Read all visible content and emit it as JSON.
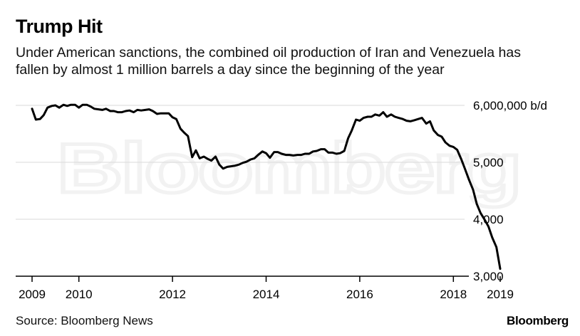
{
  "title": "Trump Hit",
  "subtitle": "Under American sanctions, the combined oil production of Iran and Venezuela has fallen by almost 1 million barrels a day since the beginning of the year",
  "source": "Source: Bloomberg News",
  "brand": "Bloomberg",
  "watermark": "Bloomberg",
  "colors": {
    "line": "#000000",
    "grid": "#d9d9d9",
    "axis": "#000000"
  },
  "chart_data": {
    "type": "line",
    "title": "Trump Hit",
    "xlabel": "",
    "ylabel": "",
    "xlim": [
      2009.0,
      2019.07
    ],
    "ylim": [
      3000000,
      6000000
    ],
    "y_ticks": [
      {
        "value": 6000000,
        "label": "6,000,000 b/d"
      },
      {
        "value": 5000000,
        "label": "5,000"
      },
      {
        "value": 4000000,
        "label": "4,000"
      },
      {
        "value": 3000000,
        "label": "3,000"
      }
    ],
    "x_ticks": [
      {
        "value": 2009.0,
        "label": "2009"
      },
      {
        "value": 2010.0,
        "label": "2010"
      },
      {
        "value": 2012.0,
        "label": "2012"
      },
      {
        "value": 2014.0,
        "label": "2014"
      },
      {
        "value": 2016.0,
        "label": "2016"
      },
      {
        "value": 2018.0,
        "label": "2018"
      },
      {
        "value": 2019.0,
        "label": "2019"
      }
    ],
    "series": [
      {
        "name": "Combined oil production of Iran and Venezuela (b/d)",
        "x": [
          2009.0,
          2009.08,
          2009.17,
          2009.25,
          2009.33,
          2009.42,
          2009.5,
          2009.58,
          2009.67,
          2009.75,
          2009.83,
          2009.92,
          2010.0,
          2010.08,
          2010.17,
          2010.25,
          2010.33,
          2010.42,
          2010.5,
          2010.58,
          2010.67,
          2010.75,
          2010.83,
          2010.92,
          2011.0,
          2011.08,
          2011.17,
          2011.25,
          2011.33,
          2011.42,
          2011.5,
          2011.58,
          2011.67,
          2011.75,
          2011.83,
          2011.92,
          2012.0,
          2012.08,
          2012.17,
          2012.25,
          2012.33,
          2012.42,
          2012.5,
          2012.58,
          2012.67,
          2012.75,
          2012.83,
          2012.92,
          2013.0,
          2013.08,
          2013.17,
          2013.25,
          2013.33,
          2013.42,
          2013.5,
          2013.58,
          2013.67,
          2013.75,
          2013.83,
          2013.92,
          2014.0,
          2014.08,
          2014.17,
          2014.25,
          2014.33,
          2014.42,
          2014.5,
          2014.58,
          2014.67,
          2014.75,
          2014.83,
          2014.92,
          2015.0,
          2015.08,
          2015.17,
          2015.25,
          2015.33,
          2015.42,
          2015.5,
          2015.58,
          2015.67,
          2015.75,
          2015.83,
          2015.92,
          2016.0,
          2016.08,
          2016.17,
          2016.25,
          2016.33,
          2016.42,
          2016.5,
          2016.58,
          2016.67,
          2016.75,
          2016.83,
          2016.92,
          2017.0,
          2017.08,
          2017.17,
          2017.25,
          2017.33,
          2017.42,
          2017.5,
          2017.58,
          2017.67,
          2017.75,
          2017.83,
          2017.92,
          2018.0,
          2018.08,
          2018.17,
          2018.25,
          2018.33,
          2018.42,
          2018.5,
          2018.58,
          2018.67,
          2018.75,
          2018.83,
          2018.92,
          2019.0
        ],
        "values": [
          5940000,
          5750000,
          5760000,
          5830000,
          5960000,
          5990000,
          6000000,
          5960000,
          6010000,
          5990000,
          6010000,
          6010000,
          5960000,
          6010000,
          6010000,
          5980000,
          5940000,
          5930000,
          5920000,
          5940000,
          5900000,
          5900000,
          5880000,
          5880000,
          5900000,
          5910000,
          5880000,
          5920000,
          5910000,
          5920000,
          5930000,
          5900000,
          5850000,
          5860000,
          5860000,
          5860000,
          5790000,
          5760000,
          5590000,
          5520000,
          5460000,
          5090000,
          5210000,
          5070000,
          5100000,
          5060000,
          5030000,
          5100000,
          4960000,
          4890000,
          4920000,
          4930000,
          4940000,
          4960000,
          4990000,
          5010000,
          5050000,
          5070000,
          5130000,
          5190000,
          5160000,
          5080000,
          5180000,
          5180000,
          5150000,
          5130000,
          5130000,
          5120000,
          5130000,
          5130000,
          5150000,
          5150000,
          5190000,
          5200000,
          5230000,
          5230000,
          5170000,
          5170000,
          5150000,
          5160000,
          5200000,
          5420000,
          5560000,
          5750000,
          5730000,
          5780000,
          5800000,
          5800000,
          5840000,
          5820000,
          5880000,
          5800000,
          5840000,
          5800000,
          5780000,
          5760000,
          5730000,
          5720000,
          5740000,
          5760000,
          5780000,
          5680000,
          5720000,
          5560000,
          5480000,
          5450000,
          5350000,
          5290000,
          5270000,
          5220000,
          5050000,
          4880000,
          4700000,
          4520000,
          4270000,
          4110000,
          3990000,
          3870000,
          3680000,
          3510000,
          3130000
        ]
      }
    ]
  }
}
